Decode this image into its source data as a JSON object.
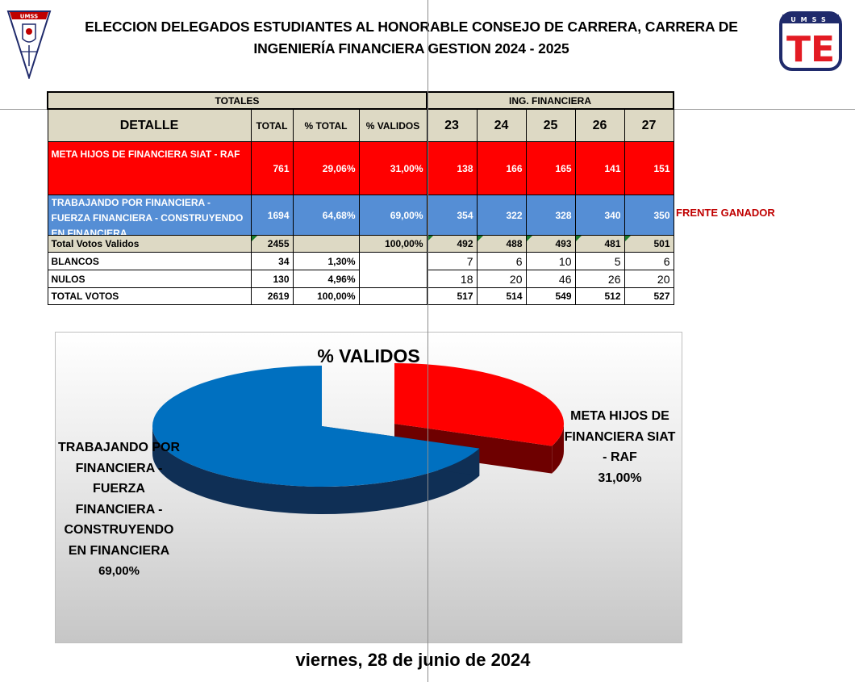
{
  "header": {
    "title_line1": "ELECCION DELEGADOS ESTUDIANTES AL HONORABLE CONSEJO DE CARRERA, CARRERA DE",
    "title_line2": "INGENIERÍA FINANCIERA GESTION 2024 - 2025",
    "left_logo_text": "UMSS",
    "right_logo_text": "UMSS",
    "right_logo_letters": "TE"
  },
  "table": {
    "group_totales": "TOTALES",
    "group_carrera": "ING. FINANCIERA",
    "columns": [
      "DETALLE",
      "TOTAL",
      "% TOTAL",
      "% VALIDOS",
      "23",
      "24",
      "25",
      "26",
      "27"
    ],
    "rows": [
      {
        "label": "META HIJOS DE FINANCIERA SIAT - RAF",
        "total": "761",
        "pct_total": "29,06%",
        "pct_validos": "31,00%",
        "mesas": [
          "138",
          "166",
          "165",
          "141",
          "151"
        ]
      },
      {
        "label": "TRABAJANDO POR FINANCIERA - FUERZA FINANCIERA - CONSTRUYENDO EN FINANCIERA",
        "total": "1694",
        "pct_total": "64,68%",
        "pct_validos": "69,00%",
        "mesas": [
          "354",
          "322",
          "328",
          "340",
          "350"
        ]
      },
      {
        "label": "Total Votos Validos",
        "total": "2455",
        "pct_total": "",
        "pct_validos": "100,00%",
        "mesas": [
          "492",
          "488",
          "493",
          "481",
          "501"
        ]
      },
      {
        "label": "BLANCOS",
        "total": "34",
        "pct_total": "1,30%",
        "pct_validos": "",
        "mesas": [
          "7",
          "6",
          "10",
          "5",
          "6"
        ]
      },
      {
        "label": "NULOS",
        "total": "130",
        "pct_total": "4,96%",
        "pct_validos": "",
        "mesas": [
          "18",
          "20",
          "46",
          "26",
          "20"
        ]
      },
      {
        "label": "TOTAL VOTOS",
        "total": "2619",
        "pct_total": "100,00%",
        "pct_validos": "",
        "mesas": [
          "517",
          "514",
          "549",
          "512",
          "527"
        ]
      }
    ],
    "winner_note": "FRENTE GANADOR"
  },
  "chart_data": {
    "type": "pie",
    "title": "% VALIDOS",
    "slices": [
      {
        "name": "META HIJOS DE FINANCIERA SIAT - RAF",
        "value": 31.0,
        "label": "31,00%",
        "color": "#ff0000"
      },
      {
        "name": "TRABAJANDO POR FINANCIERA - FUERZA FINANCIERA - CONSTRUYENDO EN FINANCIERA",
        "value": 69.0,
        "label": "69,00%",
        "color": "#0070c0"
      }
    ],
    "style": "3d-exploded"
  },
  "date": "viernes, 28 de junio de 2024",
  "colors": {
    "red": "#ff0000",
    "blue": "#558ed5",
    "header_bg": "#ddd9c4",
    "winner": "#c00000"
  }
}
